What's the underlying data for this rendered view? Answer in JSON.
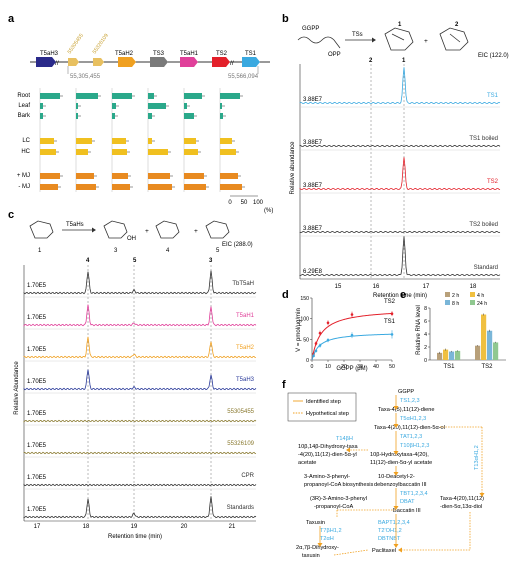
{
  "figure": {
    "panels": {
      "a": {
        "label": "a",
        "genes": [
          "T5aH3",
          "T5aH2",
          "TS3",
          "T5aH1",
          "TS2",
          "TS1"
        ],
        "contigs": [
          "55305455",
          "55326109"
        ],
        "coord_left": "55,305,455",
        "coord_right": "55,566,094",
        "tissue_rows": [
          "Root",
          "Leaf",
          "Bark"
        ],
        "cone_rows": [
          "LC",
          "HC"
        ],
        "mj_rows": [
          "+ MJ",
          "- MJ"
        ],
        "x_ticks": [
          "0",
          "50",
          "100"
        ],
        "x_unit": "(%)"
      },
      "b": {
        "label": "b",
        "substrate": "GGPP",
        "opp": "OPP",
        "enzyme": "TSs",
        "product1": "1",
        "product2": "2",
        "plus": "+",
        "eic": "EIC (122.0)",
        "ylabel": "Relative abundance",
        "xlabel": "Retention time (min)",
        "x_ticks": [
          "15",
          "16",
          "17",
          "18"
        ],
        "peak_labels": [
          "2",
          "1"
        ],
        "traces": [
          {
            "scale": "3.88E7",
            "label": "TS1",
            "color": "#3aa9e0"
          },
          {
            "scale": "3.88E7",
            "label": "TS1 boiled",
            "color": "#333333"
          },
          {
            "scale": "3.88E7",
            "label": "TS2",
            "color": "#e3202a"
          },
          {
            "scale": "3.88E7",
            "label": "TS2 boiled",
            "color": "#333333"
          },
          {
            "scale": "6.29E8",
            "label": "Standard",
            "color": "#333333"
          }
        ]
      },
      "c": {
        "label": "c",
        "enzyme": "T5aHs",
        "compounds": [
          "1",
          "3",
          "4",
          "5"
        ],
        "oh": "OH",
        "eic": "EIC (288.0)",
        "ylabel": "Relative Abundance",
        "xlabel": "Retention time (min)",
        "x_ticks": [
          "17",
          "18",
          "19",
          "20",
          "21"
        ],
        "peak_labels": [
          "4",
          "5",
          "3"
        ],
        "traces": [
          {
            "scale": "1.70E5",
            "label": "TbT5aH",
            "color": "#333333"
          },
          {
            "scale": "1.70E5",
            "label": "T5aH1",
            "color": "#e0409a"
          },
          {
            "scale": "1.70E5",
            "label": "T5aH2",
            "color": "#f0a020"
          },
          {
            "scale": "1.70E5",
            "label": "T5aH3",
            "color": "#2a3a9a"
          },
          {
            "scale": "1.70E5",
            "label": "55305455",
            "color": "#8a7a30"
          },
          {
            "scale": "1.70E5",
            "label": "55326109",
            "color": "#8a7a30"
          },
          {
            "scale": "1.70E5",
            "label": "CPR",
            "color": "#333333"
          },
          {
            "scale": "1.70E5",
            "label": "Standards",
            "color": "#333333"
          }
        ]
      },
      "d": {
        "label": "d",
        "ylabel": "V = pmol/μg/min",
        "xlabel": "GGPP (μM)",
        "x_ticks": [
          "0",
          "10",
          "20",
          "30",
          "40",
          "50"
        ],
        "y_ticks": [
          "0",
          "50",
          "100",
          "150"
        ],
        "series": [
          {
            "name": "TS2",
            "color": "#e3202a"
          },
          {
            "name": "TS1",
            "color": "#3aa9e0"
          }
        ]
      },
      "e": {
        "label": "e",
        "ylabel": "Relative RNA level",
        "y_ticks": [
          "0",
          "2",
          "4",
          "6",
          "8"
        ],
        "categories": [
          "TS1",
          "TS2"
        ],
        "legend": [
          {
            "name": "2 h",
            "color": "#b8a07a"
          },
          {
            "name": "4 h",
            "color": "#f0c040"
          },
          {
            "name": "8 h",
            "color": "#7ab6d8"
          },
          {
            "name": "24 h",
            "color": "#90c890"
          }
        ]
      },
      "f": {
        "label": "f",
        "legend_identified": "Identified step",
        "legend_hypothetical": "Hypothetical step",
        "nodes": {
          "ggpp": "GGPP",
          "ts123": "TS1,2,3",
          "taxa_diene": "Taxa-4(5),11(12)-diene",
          "t5ah123": "T5αH1,2,3",
          "taxa_ol": "Taxa-4(20),11(12)-dien-5α-ol",
          "tat123": "TAT1,2,3",
          "t10bh123": "T10βH1,2,3",
          "hydroxy_1": "10β-Hydroxytaxa-4(20),",
          "hydroxy_2": "11(12)-dien-5α-yl acetate",
          "t14bh": "T14βH",
          "dihydroxy_1": "10β,14β-Dihydroxy-taxa",
          "dihydroxy_2": "-4(20),11(12)-dien-5α-yl",
          "dihydroxy_3": "acetate",
          "t13ah12": "T13αH1,2",
          "amino_1": "3-Amino-3-phenyl-",
          "amino_2": "propanoyl-CoA biosynthesis",
          "dab_1": "10-Deacetyl-2-",
          "dab_2": "debenzoylbaccatin III",
          "tbt1234": "TBT1,2,3,4",
          "dbat": "DBAT",
          "coa_1": "(3R)-3-Amino-3-phenyl",
          "coa_2": "-propanoyl-CoA",
          "baccatin": "Baccatin III",
          "diol_1": "Taxa-4(20),11(12)",
          "diol_2": "-dien-5α,13α-diol",
          "taxusin": "Taxusin",
          "t7bh12": "T7βH1,2",
          "t2ah": "T2αH",
          "taxusin2_1": "2α,7β-Dihydroxy-",
          "taxusin2_2": "taxusin",
          "bapt1234": "BAPT1,2,3,4",
          "t2oh1": "T2'OH1,2",
          "dbtnbt": "DBTNBT",
          "paclitaxel": "Paclitaxel"
        }
      }
    }
  },
  "chart_data": [
    {
      "type": "line",
      "panel": "d",
      "xlabel": "GGPP (μM)",
      "ylabel": "V = pmol/μg/min",
      "xlim": [
        0,
        50
      ],
      "ylim": [
        0,
        150
      ],
      "series": [
        {
          "name": "TS2",
          "x": [
            1,
            2.5,
            5,
            10,
            25,
            50
          ],
          "y": [
            15,
            40,
            65,
            90,
            110,
            112
          ],
          "err": [
            3,
            5,
            6,
            6,
            7,
            6
          ],
          "vmax": 125,
          "km": 5.5
        },
        {
          "name": "TS1",
          "x": [
            1,
            2.5,
            5,
            10,
            25,
            50
          ],
          "y": [
            10,
            22,
            35,
            48,
            60,
            62
          ],
          "err": [
            3,
            4,
            5,
            5,
            7,
            10
          ],
          "vmax": 68,
          "km": 4.5
        }
      ]
    },
    {
      "type": "bar",
      "panel": "e",
      "ylabel": "Relative RNA level",
      "ylim": [
        0,
        8
      ],
      "categories": [
        "TS1",
        "TS2"
      ],
      "series": [
        {
          "name": "2 h",
          "values": [
            1.1,
            2.2
          ],
          "err": [
            0.15,
            0.1
          ]
        },
        {
          "name": "4 h",
          "values": [
            1.6,
            7.0
          ],
          "err": [
            0.15,
            0.15
          ]
        },
        {
          "name": "8 h",
          "values": [
            1.3,
            4.5
          ],
          "err": [
            0.1,
            0.15
          ]
        },
        {
          "name": "24 h",
          "values": [
            1.4,
            2.7
          ],
          "err": [
            0.1,
            0.1
          ]
        }
      ]
    }
  ]
}
